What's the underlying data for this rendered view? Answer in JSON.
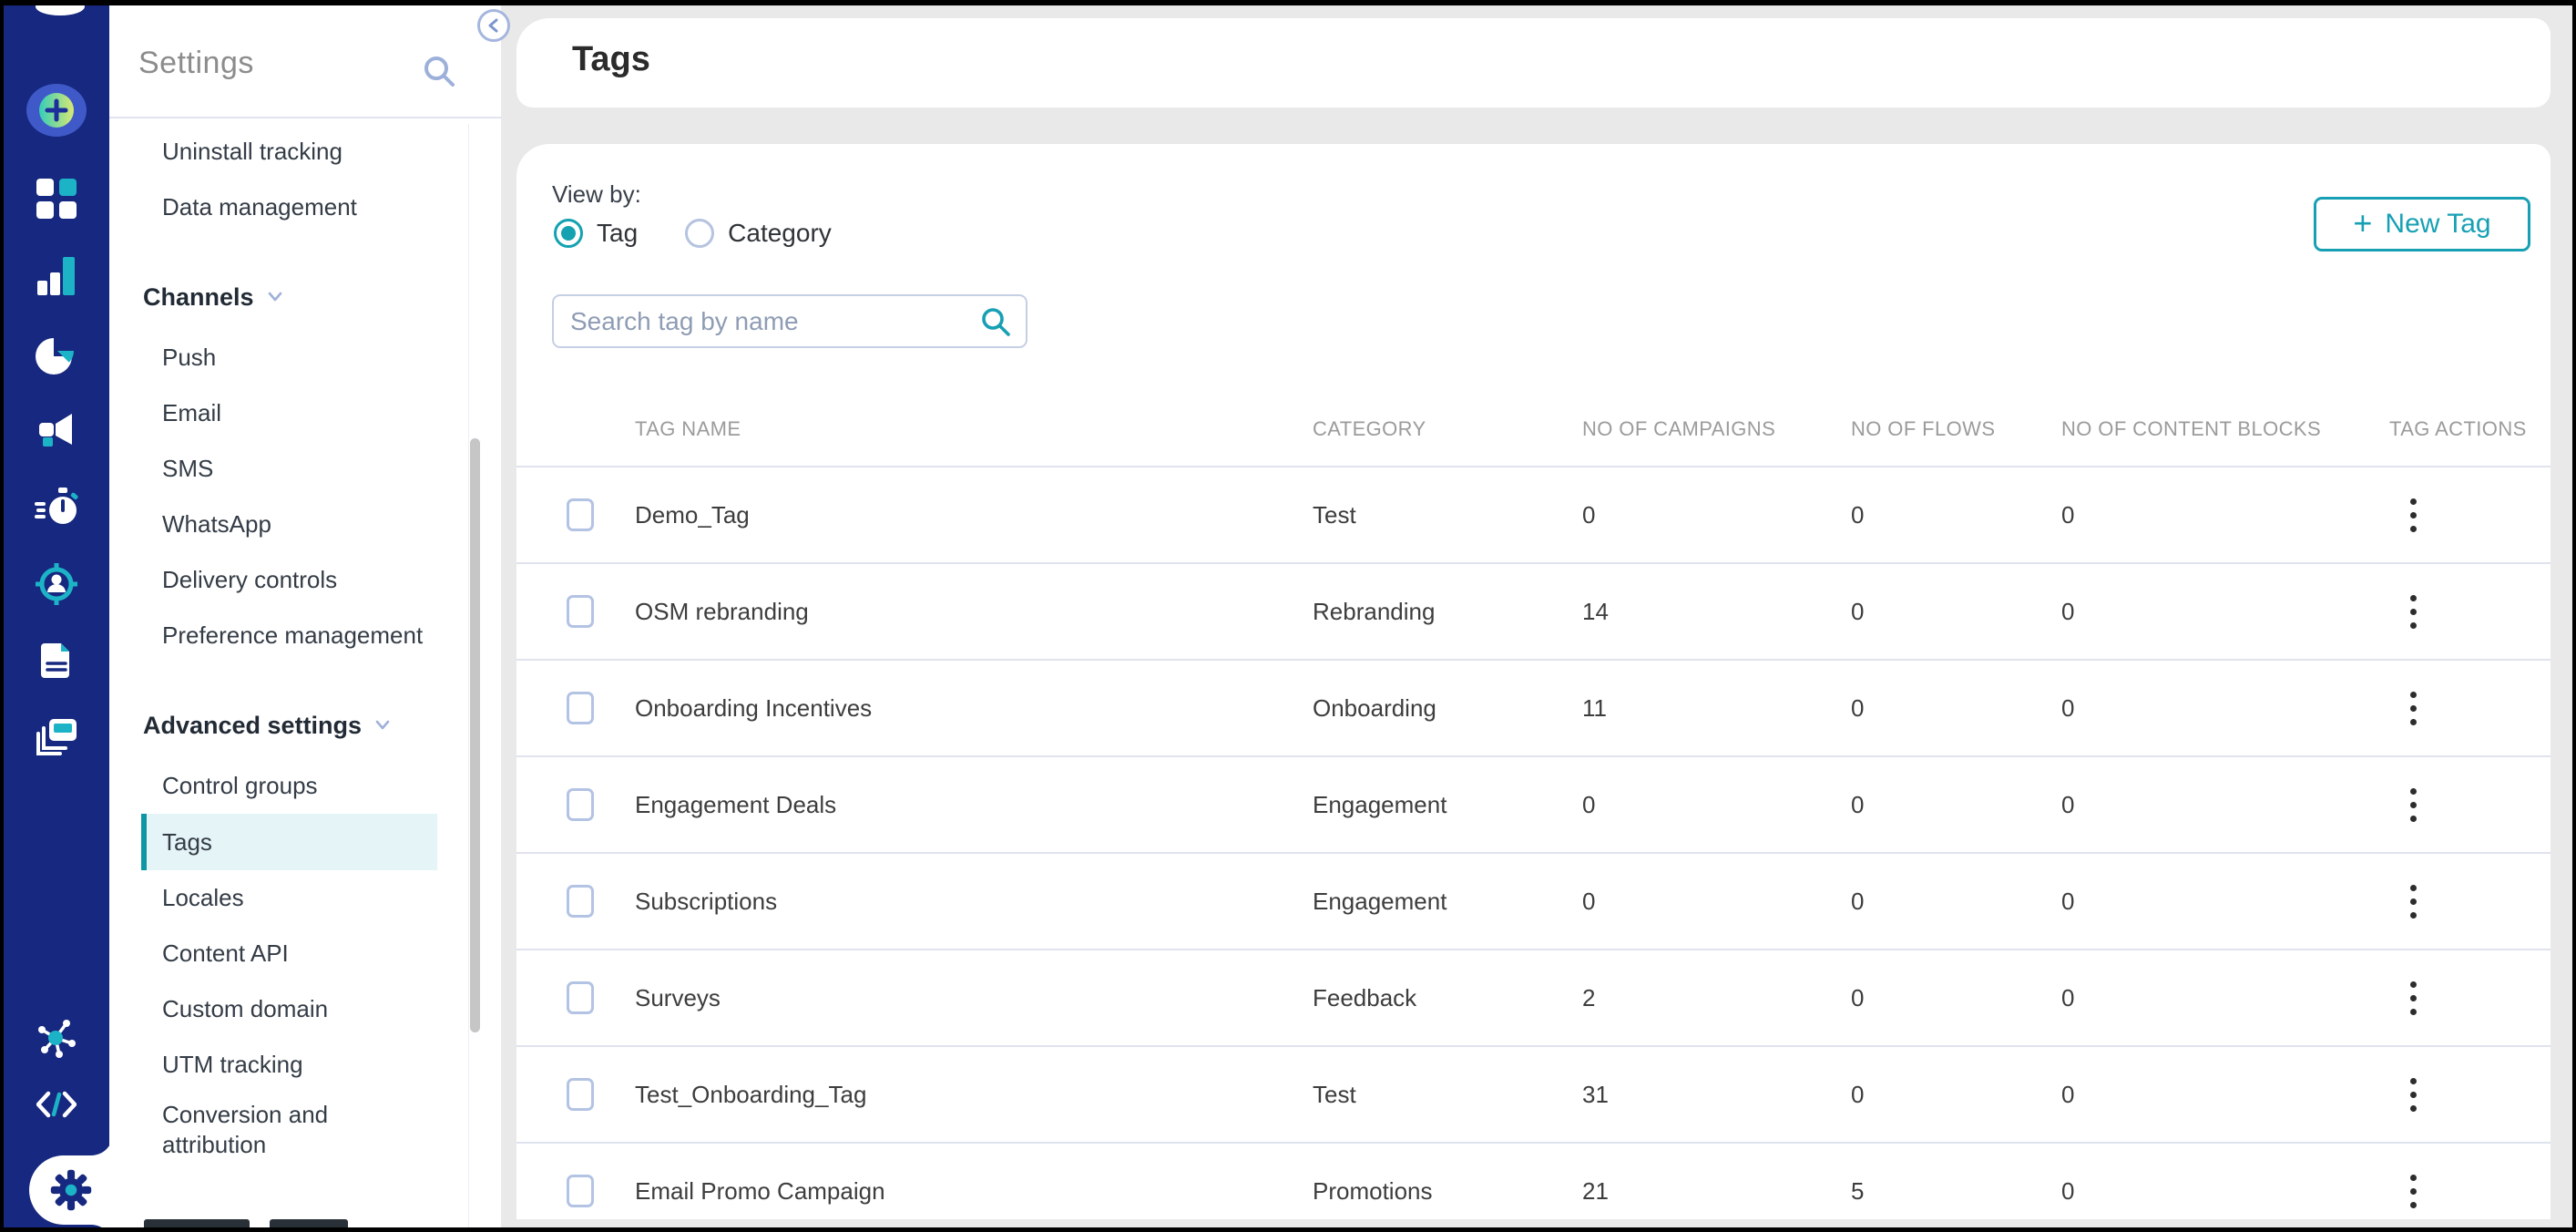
{
  "sidebar": {
    "title": "Settings",
    "icons": {
      "search": "search-icon",
      "collapse": "collapse-panel-icon"
    },
    "sections": [
      {
        "header": null,
        "items": [
          "Uninstall tracking",
          "Data management"
        ]
      },
      {
        "header": "Channels",
        "items": [
          "Push",
          "Email",
          "SMS",
          "WhatsApp",
          "Delivery controls",
          "Preference management"
        ]
      },
      {
        "header": "Advanced settings",
        "selected": "Tags",
        "items": [
          "Control groups",
          "Tags",
          "Locales",
          "Content API",
          "Custom domain",
          "UTM tracking",
          "Conversion and attribution"
        ]
      }
    ]
  },
  "rail": {
    "icons": [
      "logo",
      "create-plus",
      "dashboard-grid",
      "analytics-bars",
      "segments-pie",
      "campaigns-megaphone",
      "journeys-stopwatch",
      "audience-target",
      "documents",
      "content-cards",
      "integrations-hub",
      "developer-code",
      "settings-gear"
    ],
    "active_icon": "settings-gear"
  },
  "main": {
    "page_title": "Tags",
    "view_by": {
      "label": "View by:",
      "options": [
        {
          "label": "Tag",
          "selected": true
        },
        {
          "label": "Category",
          "selected": false
        }
      ]
    },
    "new_tag_button": {
      "icon": "plus-icon",
      "label": "New Tag"
    },
    "search": {
      "placeholder": "Search tag by name",
      "value": "",
      "icon": "search-icon"
    },
    "table": {
      "columns": [
        "TAG NAME",
        "CATEGORY",
        "NO OF CAMPAIGNS",
        "NO OF FLOWS",
        "NO OF CONTENT BLOCKS",
        "TAG ACTIONS"
      ],
      "row_actions_icon": "kebab-menu-icon",
      "rows": [
        {
          "name": "Demo_Tag",
          "category": "Test",
          "campaigns": "0",
          "flows": "0",
          "content_blocks": "0"
        },
        {
          "name": "OSM rebranding",
          "category": "Rebranding",
          "campaigns": "14",
          "flows": "0",
          "content_blocks": "0"
        },
        {
          "name": "Onboarding Incentives",
          "category": "Onboarding",
          "campaigns": "11",
          "flows": "0",
          "content_blocks": "0"
        },
        {
          "name": "Engagement Deals",
          "category": "Engagement",
          "campaigns": "0",
          "flows": "0",
          "content_blocks": "0"
        },
        {
          "name": "Subscriptions",
          "category": "Engagement",
          "campaigns": "0",
          "flows": "0",
          "content_blocks": "0"
        },
        {
          "name": "Surveys",
          "category": "Feedback",
          "campaigns": "2",
          "flows": "0",
          "content_blocks": "0"
        },
        {
          "name": "Test_Onboarding_Tag",
          "category": "Test",
          "campaigns": "31",
          "flows": "0",
          "content_blocks": "0"
        },
        {
          "name": "Email Promo Campaign",
          "category": "Promotions",
          "campaigns": "21",
          "flows": "5",
          "content_blocks": "0"
        }
      ]
    }
  },
  "colors": {
    "rail_navy": "#16287f",
    "accent_teal": "#17a0b4",
    "rail_icon_teal": "#1db3c7",
    "selected_item_bg": "#e5f4f6",
    "selected_item_bar": "#0f96a4",
    "row_divider": "#dfe3ee",
    "table_header_text": "#9b9b9b",
    "main_background": "#e9e9e9",
    "checkbox_border": "#b3c3e3",
    "placeholder_text": "#8e9cb4",
    "periwinkle_icon": "#9cb0da"
  }
}
